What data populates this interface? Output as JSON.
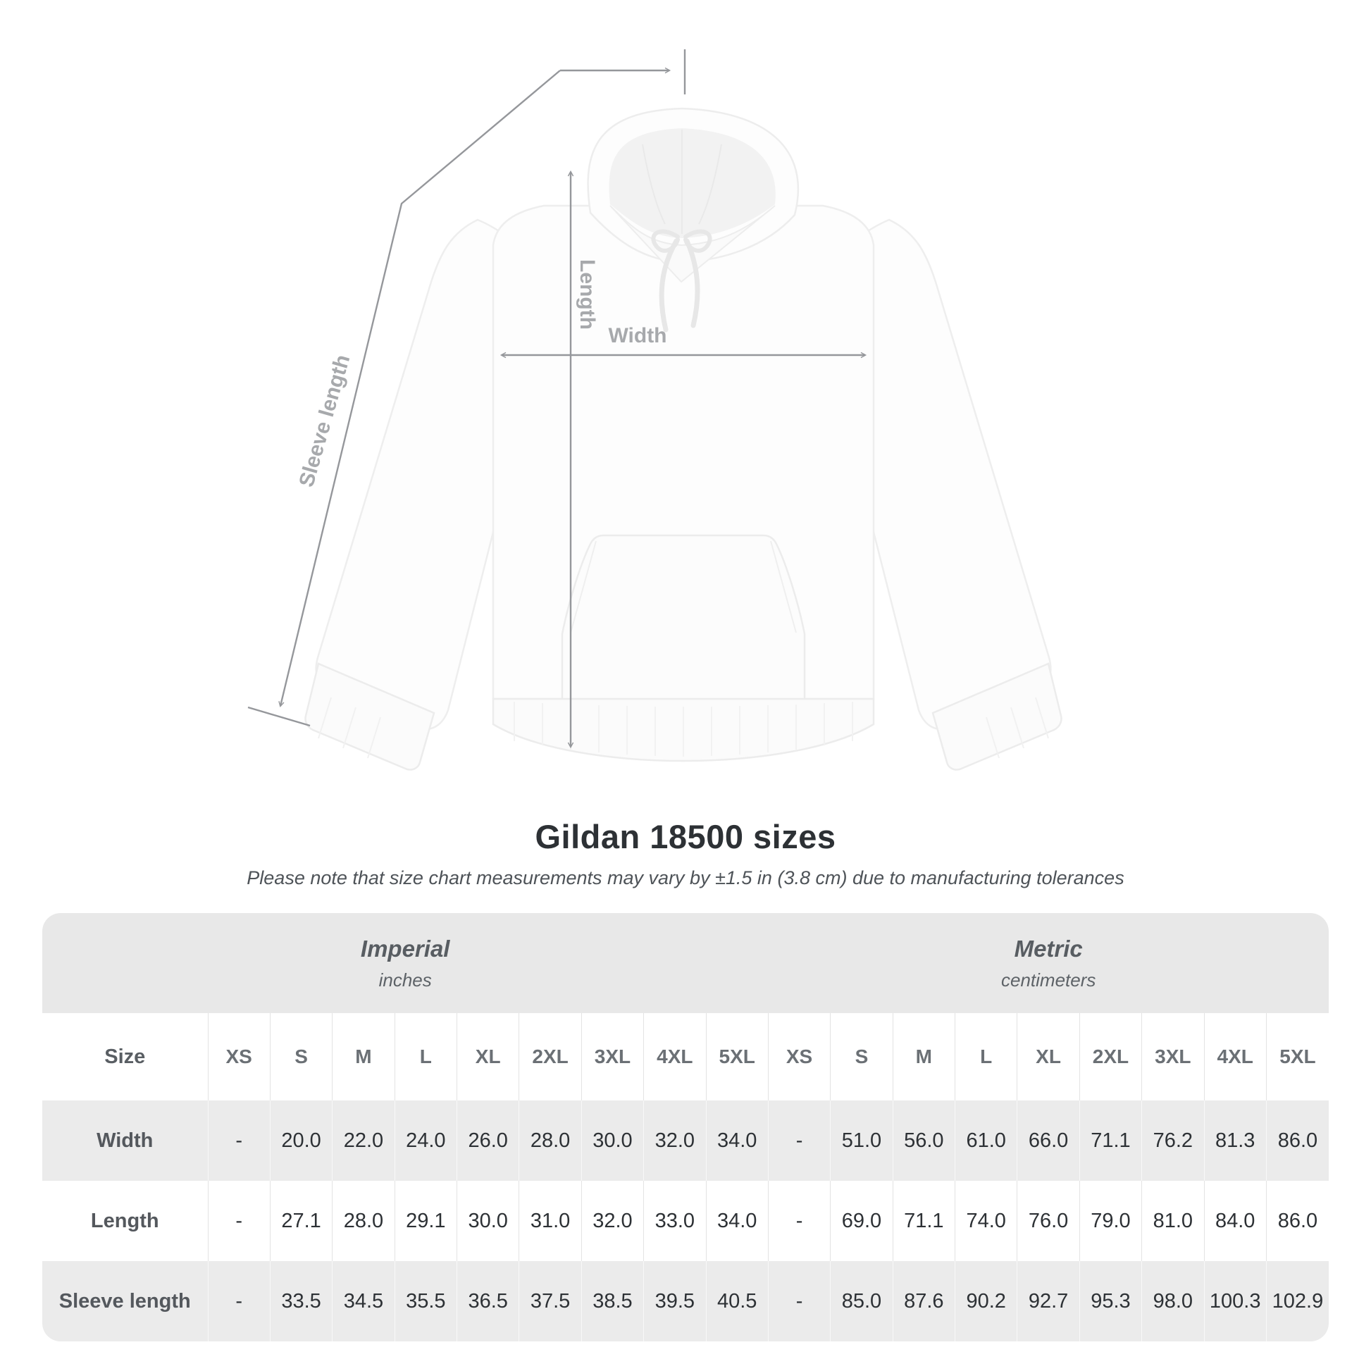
{
  "annotations": {
    "length_label": "Length",
    "width_label": "Width",
    "sleeve_label": "Sleeve length"
  },
  "chart_data": {
    "type": "table",
    "title": "Gildan 18500 sizes",
    "subtitle": "Please note that size chart measurements may vary by ±1.5 in (3.8 cm) due to manufacturing tolerances",
    "column_groups": [
      {
        "label": "Imperial",
        "unit": "inches"
      },
      {
        "label": "Metric",
        "unit": "centimeters"
      }
    ],
    "size_header": "Size",
    "sizes": [
      "XS",
      "S",
      "M",
      "L",
      "XL",
      "2XL",
      "3XL",
      "4XL",
      "5XL"
    ],
    "rows": [
      {
        "label": "Width",
        "imperial": [
          "-",
          "20.0",
          "22.0",
          "24.0",
          "26.0",
          "28.0",
          "30.0",
          "32.0",
          "34.0"
        ],
        "metric": [
          "-",
          "51.0",
          "56.0",
          "61.0",
          "66.0",
          "71.1",
          "76.2",
          "81.3",
          "86.0"
        ]
      },
      {
        "label": "Length",
        "imperial": [
          "-",
          "27.1",
          "28.0",
          "29.1",
          "30.0",
          "31.0",
          "32.0",
          "33.0",
          "34.0"
        ],
        "metric": [
          "-",
          "69.0",
          "71.1",
          "74.0",
          "76.0",
          "79.0",
          "81.0",
          "84.0",
          "86.0"
        ]
      },
      {
        "label": "Sleeve length",
        "imperial": [
          "-",
          "33.5",
          "34.5",
          "35.5",
          "36.5",
          "37.5",
          "38.5",
          "39.5",
          "40.5"
        ],
        "metric": [
          "-",
          "85.0",
          "87.6",
          "90.2",
          "92.7",
          "95.3",
          "98.0",
          "100.3",
          "102.9"
        ]
      }
    ]
  },
  "colors": {
    "dimension_line": "#95979b",
    "dimension_label": "#a7a9ac",
    "header_band": "#e8e8e8",
    "row_stripe": "#ebebeb",
    "title_text": "#2d3135"
  }
}
